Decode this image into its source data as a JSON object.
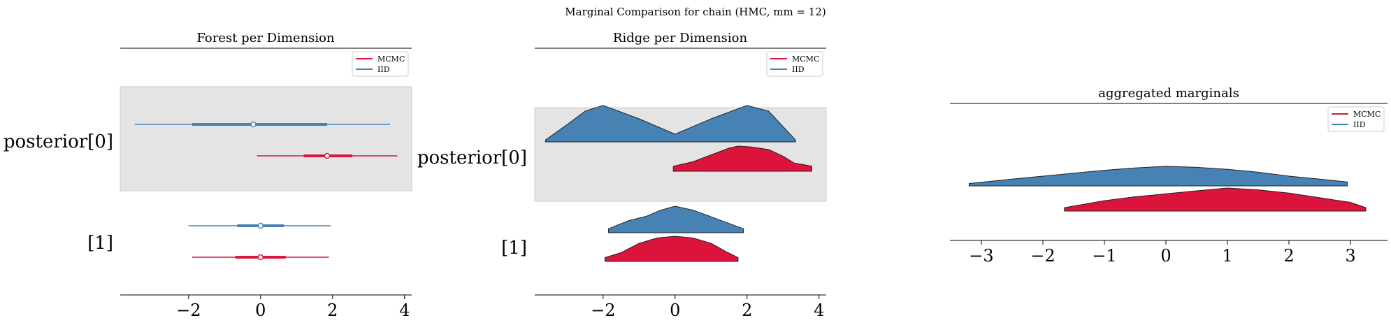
{
  "suptitle": "Marginal Comparison for chain (HMC, mm = 12)",
  "colors": {
    "mcmc": "#DC143C",
    "iid": "#4682B4",
    "band": "#e4e4e4",
    "band_edge": "#cccccc"
  },
  "chart_data": [
    {
      "type": "forest",
      "title": "Forest per Dimension",
      "row_labels": [
        "posterior[0]",
        "[1]"
      ],
      "highlighted_row": 0,
      "xticks": [
        -2,
        0,
        2,
        4
      ],
      "xlim": [
        -3.9,
        4.2
      ],
      "legend": {
        "placement": "top-right",
        "entries": [
          "MCMC",
          "IID"
        ]
      },
      "series": [
        {
          "name": "MCMC",
          "rows": [
            {
              "lo": -0.1,
              "q1": 1.2,
              "median": 1.85,
              "q3": 2.55,
              "hi": 3.8
            },
            {
              "lo": -1.9,
              "q1": -0.7,
              "median": 0.0,
              "q3": 0.7,
              "hi": 1.9
            }
          ]
        },
        {
          "name": "IID",
          "rows": [
            {
              "lo": -3.5,
              "q1": -1.9,
              "median": -0.2,
              "q3": 1.85,
              "hi": 3.6
            },
            {
              "lo": -2.0,
              "q1": -0.65,
              "median": 0.0,
              "q3": 0.65,
              "hi": 1.95
            }
          ]
        }
      ]
    },
    {
      "type": "ridge",
      "title": "Ridge per Dimension",
      "row_labels": [
        "posterior[0]",
        "[1]"
      ],
      "highlighted_row": 0,
      "xticks": [
        -2,
        0,
        2,
        4
      ],
      "xlim": [
        -3.9,
        4.2
      ],
      "legend": {
        "placement": "top-right",
        "entries": [
          "MCMC",
          "IID"
        ]
      },
      "series": [
        {
          "name": "MCMC",
          "rows": [
            {
              "x": [
                -0.05,
                0.5,
                1.0,
                1.5,
                1.75,
                2.1,
                2.6,
                3.0,
                3.3,
                3.8
              ],
              "y": [
                0.2,
                0.38,
                0.65,
                0.92,
                1.0,
                0.97,
                0.86,
                0.6,
                0.33,
                0.2
              ]
            },
            {
              "x": [
                -1.95,
                -1.5,
                -1.0,
                -0.5,
                0.0,
                0.5,
                1.0,
                1.4,
                1.75
              ],
              "y": [
                0.15,
                0.35,
                0.72,
                0.93,
                1.0,
                0.93,
                0.72,
                0.4,
                0.15
              ]
            }
          ]
        },
        {
          "name": "IID",
          "rows": [
            {
              "x": [
                -3.6,
                -3.0,
                -2.5,
                -2.0,
                -1.0,
                0.0,
                1.0,
                2.0,
                2.6,
                3.35
              ],
              "y": [
                0.05,
                0.45,
                0.8,
                0.95,
                0.6,
                0.2,
                0.6,
                0.95,
                0.8,
                0.05
              ]
            },
            {
              "x": [
                -1.85,
                -1.3,
                -0.8,
                -0.4,
                0.0,
                0.5,
                1.0,
                1.5,
                1.9
              ],
              "y": [
                0.15,
                0.45,
                0.62,
                0.85,
                1.0,
                0.85,
                0.6,
                0.35,
                0.15
              ]
            }
          ]
        }
      ]
    },
    {
      "type": "area",
      "title": "aggregated marginals",
      "xticks": [
        -3,
        -2,
        -1,
        0,
        1,
        2,
        3
      ],
      "xlim": [
        -3.5,
        3.5
      ],
      "legend": {
        "placement": "top-right",
        "entries": [
          "MCMC",
          "IID"
        ]
      },
      "series": [
        {
          "name": "MCMC",
          "x": [
            -1.65,
            -1.0,
            -0.5,
            0.0,
            0.5,
            1.0,
            1.5,
            2.0,
            2.5,
            3.0,
            3.25
          ],
          "y": [
            0.15,
            0.45,
            0.62,
            0.75,
            0.88,
            1.0,
            0.92,
            0.78,
            0.58,
            0.38,
            0.15
          ]
        },
        {
          "name": "IID",
          "x": [
            -3.2,
            -2.5,
            -2.0,
            -1.5,
            -1.0,
            -0.5,
            0.0,
            0.5,
            1.0,
            1.5,
            2.0,
            2.5,
            2.95
          ],
          "y": [
            0.12,
            0.35,
            0.5,
            0.65,
            0.8,
            0.92,
            1.0,
            0.95,
            0.85,
            0.7,
            0.5,
            0.35,
            0.2
          ]
        }
      ]
    }
  ]
}
